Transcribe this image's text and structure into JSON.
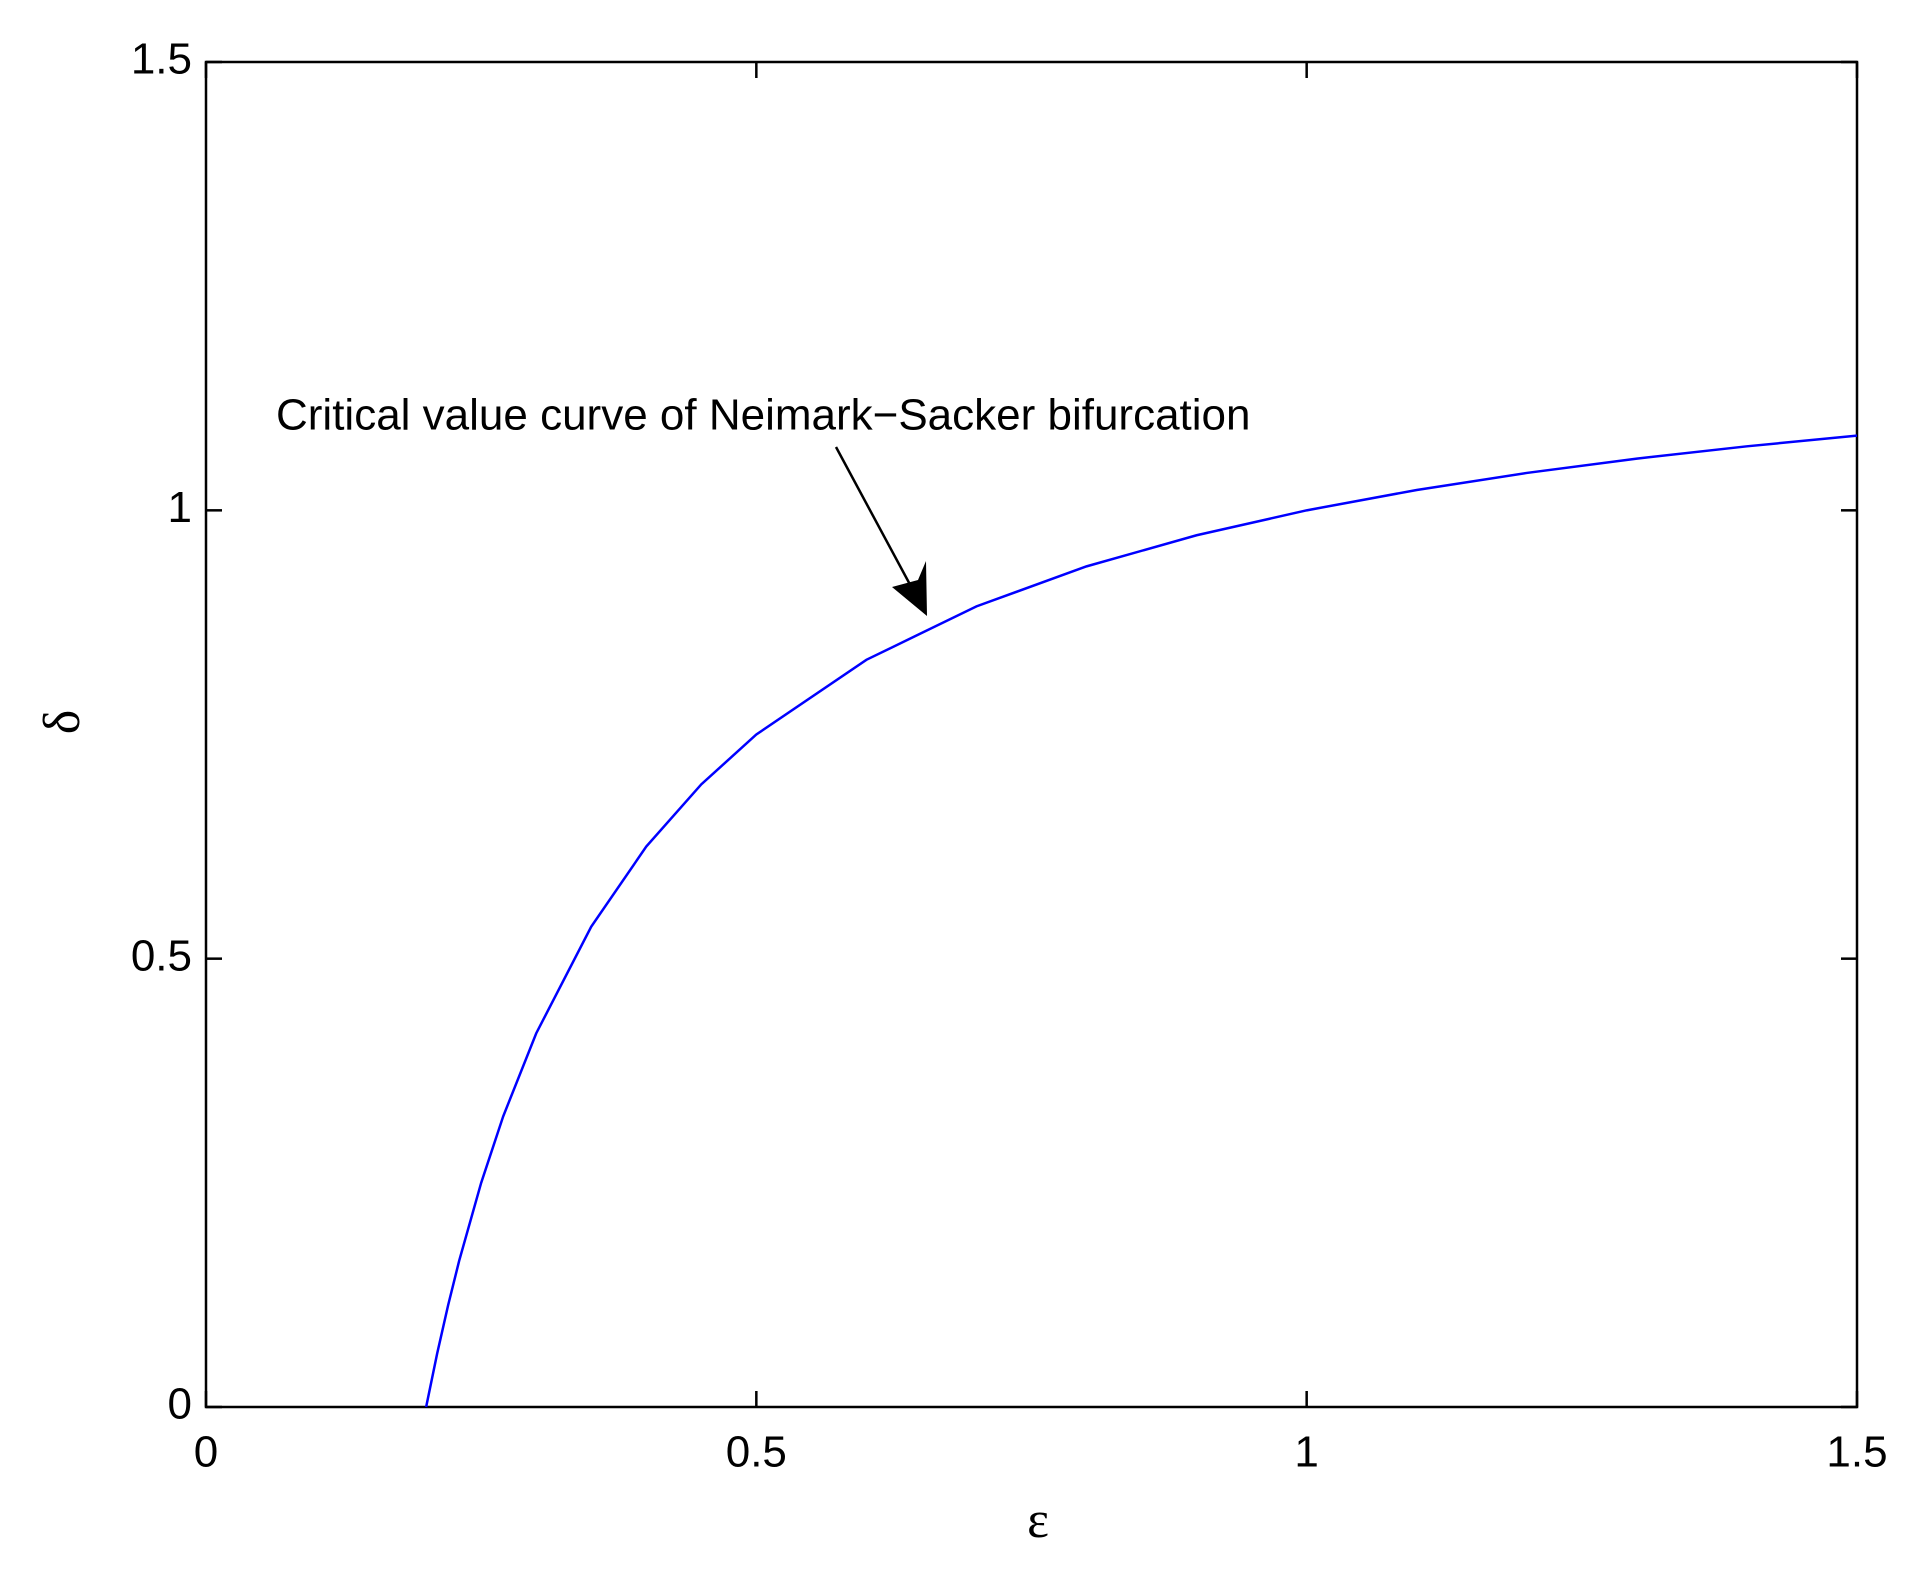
{
  "chart_data": {
    "type": "line",
    "xlabel": "ε",
    "ylabel": "δ",
    "annotation": "Critical value curve of Neimark−Sacker bifurcation",
    "x": [
      0.2,
      0.21,
      0.22,
      0.23,
      0.25,
      0.27,
      0.3,
      0.35,
      0.4,
      0.45,
      0.5,
      0.6,
      0.7,
      0.8,
      0.9,
      1.0,
      1.1,
      1.2,
      1.3,
      1.4,
      1.5
    ],
    "series": [
      {
        "color": "#0000ff",
        "values": [
          0,
          0.0595,
          0.1136,
          0.163,
          0.25,
          0.3241,
          0.4167,
          0.5357,
          0.625,
          0.6944,
          0.75,
          0.8333,
          0.8929,
          0.9375,
          0.9722,
          1.0,
          1.0227,
          1.0417,
          1.0577,
          1.0714,
          1.0833
        ]
      }
    ],
    "xlim": [
      0,
      1.5
    ],
    "ylim": [
      0,
      1.5
    ],
    "xticks": [
      0,
      0.5,
      1,
      1.5
    ],
    "yticks": [
      0,
      0.5,
      1,
      1.5
    ],
    "grid": false
  }
}
